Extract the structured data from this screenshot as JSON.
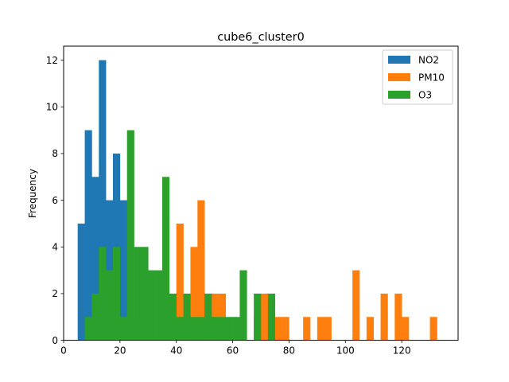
{
  "chart_data": {
    "type": "bar",
    "title": "cube6_cluster0",
    "xlabel": "",
    "ylabel": "Frequency",
    "xlim": [
      0,
      140
    ],
    "ylim": [
      0,
      12.6
    ],
    "xticks": [
      0,
      20,
      40,
      60,
      80,
      100,
      120
    ],
    "yticks": [
      0,
      2,
      4,
      6,
      8,
      10,
      12
    ],
    "grid": false,
    "legend_position": "top-right",
    "bin_width": 2.5,
    "series": [
      {
        "name": "NO2",
        "color": "#1f77b4",
        "bins": [
          {
            "x": 6.25,
            "count": 5
          },
          {
            "x": 8.75,
            "count": 9
          },
          {
            "x": 11.25,
            "count": 7
          },
          {
            "x": 13.75,
            "count": 12
          },
          {
            "x": 16.25,
            "count": 6
          },
          {
            "x": 18.75,
            "count": 8
          },
          {
            "x": 21.25,
            "count": 6
          },
          {
            "x": 23.75,
            "count": 1
          }
        ]
      },
      {
        "name": "PM10",
        "color": "#ff7f0e",
        "bins": [
          {
            "x": 41.25,
            "count": 5
          },
          {
            "x": 43.75,
            "count": 1
          },
          {
            "x": 46.25,
            "count": 4
          },
          {
            "x": 48.75,
            "count": 6
          },
          {
            "x": 51.25,
            "count": 1
          },
          {
            "x": 53.75,
            "count": 2
          },
          {
            "x": 56.25,
            "count": 2
          },
          {
            "x": 68.75,
            "count": 1
          },
          {
            "x": 71.25,
            "count": 2
          },
          {
            "x": 73.75,
            "count": 1
          },
          {
            "x": 76.25,
            "count": 1
          },
          {
            "x": 78.75,
            "count": 1
          },
          {
            "x": 86.25,
            "count": 1
          },
          {
            "x": 91.25,
            "count": 1
          },
          {
            "x": 93.75,
            "count": 1
          },
          {
            "x": 103.75,
            "count": 3
          },
          {
            "x": 108.75,
            "count": 1
          },
          {
            "x": 113.75,
            "count": 2
          },
          {
            "x": 118.75,
            "count": 2
          },
          {
            "x": 121.25,
            "count": 1
          },
          {
            "x": 131.25,
            "count": 1
          }
        ]
      },
      {
        "name": "O3",
        "color": "#2ca02c",
        "bins": [
          {
            "x": 8.75,
            "count": 1
          },
          {
            "x": 11.25,
            "count": 2
          },
          {
            "x": 13.75,
            "count": 4
          },
          {
            "x": 16.25,
            "count": 3
          },
          {
            "x": 18.75,
            "count": 4
          },
          {
            "x": 21.25,
            "count": 1
          },
          {
            "x": 23.75,
            "count": 9
          },
          {
            "x": 26.25,
            "count": 4
          },
          {
            "x": 28.75,
            "count": 4
          },
          {
            "x": 31.25,
            "count": 3
          },
          {
            "x": 33.75,
            "count": 3
          },
          {
            "x": 36.25,
            "count": 7
          },
          {
            "x": 38.75,
            "count": 2
          },
          {
            "x": 41.25,
            "count": 1
          },
          {
            "x": 43.75,
            "count": 2
          },
          {
            "x": 46.25,
            "count": 1
          },
          {
            "x": 48.75,
            "count": 1
          },
          {
            "x": 51.25,
            "count": 2
          },
          {
            "x": 53.75,
            "count": 1
          },
          {
            "x": 56.25,
            "count": 1
          },
          {
            "x": 58.75,
            "count": 1
          },
          {
            "x": 61.25,
            "count": 1
          },
          {
            "x": 63.75,
            "count": 3
          },
          {
            "x": 68.75,
            "count": 2
          },
          {
            "x": 73.75,
            "count": 2
          }
        ]
      }
    ]
  }
}
